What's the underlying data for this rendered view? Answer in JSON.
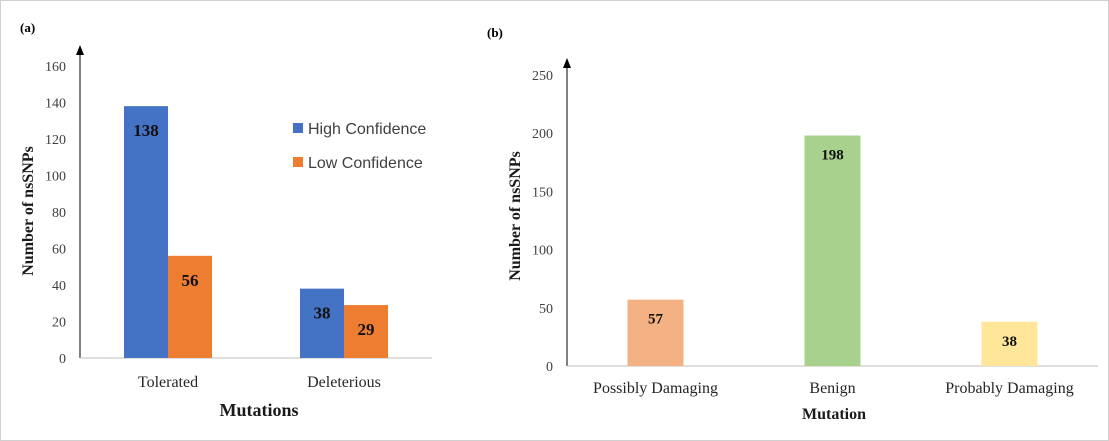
{
  "charts": [
    {
      "panel_label": "(a)",
      "chart_data": {
        "type": "bar",
        "categories": [
          "Tolerated",
          "Deleterious"
        ],
        "series": [
          {
            "name": "High Confidence",
            "color": "#4472C4",
            "values": [
              138,
              38
            ]
          },
          {
            "name": "Low Confidence",
            "color": "#ED7D31",
            "values": [
              56,
              29
            ]
          }
        ],
        "xlabel": "Mutations",
        "ylabel": "Number of nsSNPs",
        "ylim": [
          0,
          160
        ],
        "yticks": [
          0,
          20,
          40,
          60,
          80,
          100,
          120,
          140,
          160
        ],
        "grid": false,
        "legend_position": "right"
      }
    },
    {
      "panel_label": "(b)",
      "chart_data": {
        "type": "bar",
        "categories": [
          "Possibly Damaging",
          "Benign",
          "Probably Damaging"
        ],
        "values": [
          57,
          198,
          38
        ],
        "colors": [
          "#F4B183",
          "#A9D18E",
          "#FFE699"
        ],
        "xlabel": "Mutation",
        "ylabel": "Number of nsSNPs",
        "ylim": [
          0,
          250
        ],
        "yticks": [
          0,
          50,
          100,
          150,
          200,
          250
        ],
        "grid": false
      }
    }
  ]
}
